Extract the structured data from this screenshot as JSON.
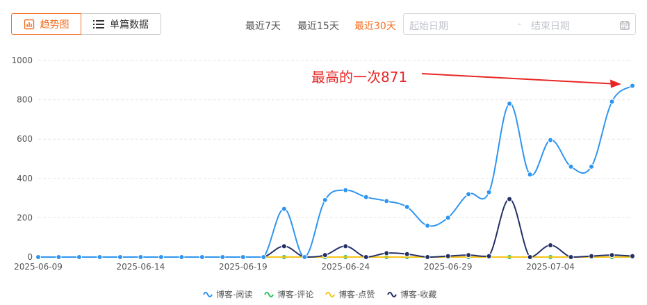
{
  "toolbar": {
    "trend_label": "趋势图",
    "single_label": "单篇数据",
    "ranges": [
      "最近7天",
      "最近15天",
      "最近30天"
    ],
    "active_range": "最近30天",
    "start_placeholder": "起始日期",
    "separator": "-",
    "end_placeholder": "结束日期"
  },
  "colors": {
    "accent": "#f26f21",
    "read": "#2f95f0",
    "comment": "#2ec35f",
    "like": "#f5c518",
    "collect": "#233067",
    "annotation": "#e82626"
  },
  "chart_data": {
    "type": "line",
    "x": [
      "2025-06-09",
      "2025-06-10",
      "2025-06-11",
      "2025-06-12",
      "2025-06-13",
      "2025-06-14",
      "2025-06-15",
      "2025-06-16",
      "2025-06-17",
      "2025-06-18",
      "2025-06-19",
      "2025-06-20",
      "2025-06-21",
      "2025-06-22",
      "2025-06-23",
      "2025-06-24",
      "2025-06-25",
      "2025-06-26",
      "2025-06-27",
      "2025-06-28",
      "2025-06-29",
      "2025-06-30",
      "2025-07-01",
      "2025-07-02",
      "2025-07-03",
      "2025-07-04",
      "2025-07-05",
      "2025-07-06",
      "2025-07-07",
      "2025-07-08"
    ],
    "x_ticks": [
      "2025-06-09",
      "2025-06-14",
      "2025-06-19",
      "2025-06-24",
      "2025-06-29",
      "2025-07-04"
    ],
    "y_ticks": [
      0,
      200,
      400,
      600,
      800,
      1000
    ],
    "ylim": [
      0,
      1000
    ],
    "series": [
      {
        "name": "博客-阅读",
        "color_key": "read",
        "values": [
          0,
          0,
          0,
          0,
          0,
          0,
          0,
          0,
          0,
          0,
          0,
          0,
          245,
          0,
          290,
          340,
          305,
          285,
          255,
          160,
          200,
          320,
          330,
          780,
          420,
          595,
          460,
          460,
          790,
          871
        ]
      },
      {
        "name": "博客-评论",
        "color_key": "comment",
        "values": [
          0,
          0,
          0,
          0,
          0,
          0,
          0,
          0,
          0,
          0,
          0,
          0,
          0,
          0,
          0,
          0,
          0,
          0,
          0,
          0,
          0,
          0,
          0,
          0,
          0,
          0,
          0,
          0,
          0,
          0
        ]
      },
      {
        "name": "博客-点赞",
        "color_key": "like",
        "values": [
          0,
          0,
          0,
          0,
          0,
          0,
          0,
          0,
          0,
          0,
          0,
          0,
          0,
          0,
          0,
          0,
          0,
          0,
          0,
          0,
          0,
          0,
          0,
          0,
          0,
          0,
          0,
          0,
          0,
          0
        ]
      },
      {
        "name": "博客-收藏",
        "color_key": "collect",
        "values": [
          0,
          0,
          0,
          0,
          0,
          0,
          0,
          0,
          0,
          0,
          0,
          0,
          55,
          0,
          10,
          55,
          0,
          20,
          15,
          0,
          5,
          10,
          5,
          295,
          0,
          60,
          0,
          5,
          10,
          5
        ]
      }
    ],
    "markers_on": [
      "博客-阅读",
      "博客-评论",
      "博客-收藏"
    ],
    "grid": "horizontal-dashed",
    "legend": "bottom-center",
    "annotation": {
      "text": "最高的一次871",
      "target_index": 29,
      "series": "博客-阅读"
    }
  }
}
